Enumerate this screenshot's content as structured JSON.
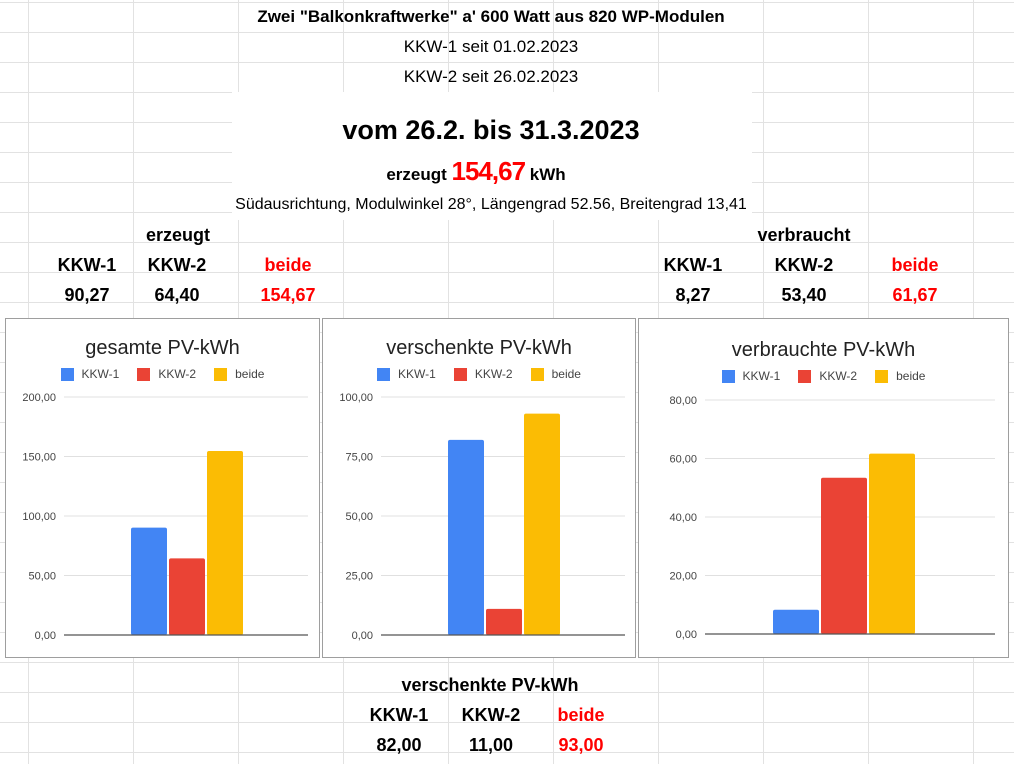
{
  "header": {
    "title": "Zwei \"Balkonkraftwerke\" a' 600 Watt aus 820 WP-Modulen",
    "kkw1_since": "KKW-1 seit 01.02.2023",
    "kkw2_since": "KKW-2 seit 26.02.2023",
    "period": "vom 26.2. bis 31.3.2023",
    "produced_label": "erzeugt",
    "produced_value": "154,67",
    "produced_unit": "kWh",
    "location": "Südausrichtung, Modulwinkel 28°,  Längengrad 52.56,  Breitengrad 13,41"
  },
  "produced_table": {
    "heading": "erzeugt",
    "headers": [
      "KKW-1",
      "KKW-2",
      "beide"
    ],
    "values": [
      "90,27",
      "64,40",
      "154,67"
    ]
  },
  "consumed_table": {
    "heading": "verbraucht",
    "headers": [
      "KKW-1",
      "KKW-2",
      "beide"
    ],
    "values": [
      "8,27",
      "53,40",
      "61,67"
    ]
  },
  "given_table": {
    "heading": "verschenkte PV-kWh",
    "headers": [
      "KKW-1",
      "KKW-2",
      "beide"
    ],
    "values": [
      "82,00",
      "11,00",
      "93,00"
    ]
  },
  "colors": {
    "kkw1": "#4285f4",
    "kkw2": "#ea4335",
    "beide": "#fbbc04",
    "highlight": "#ff0000"
  },
  "chart_data": [
    {
      "type": "bar",
      "title": "gesamte PV-kWh",
      "series": [
        {
          "name": "KKW-1",
          "values": [
            90.27
          ]
        },
        {
          "name": "KKW-2",
          "values": [
            64.4
          ]
        },
        {
          "name": "beide",
          "values": [
            154.67
          ]
        }
      ],
      "yticks": [
        "0,00",
        "50,00",
        "100,00",
        "150,00",
        "200,00"
      ],
      "ylim": [
        0,
        200
      ],
      "legend": "top",
      "grid": true
    },
    {
      "type": "bar",
      "title": "verschenkte PV-kWh",
      "series": [
        {
          "name": "KKW-1",
          "values": [
            82.0
          ]
        },
        {
          "name": "KKW-2",
          "values": [
            11.0
          ]
        },
        {
          "name": "beide",
          "values": [
            93.0
          ]
        }
      ],
      "yticks": [
        "0,00",
        "25,00",
        "50,00",
        "75,00",
        "100,00"
      ],
      "ylim": [
        0,
        100
      ],
      "legend": "top",
      "grid": true
    },
    {
      "type": "bar",
      "title": "verbrauchte PV-kWh",
      "series": [
        {
          "name": "KKW-1",
          "values": [
            8.27
          ]
        },
        {
          "name": "KKW-2",
          "values": [
            53.4
          ]
        },
        {
          "name": "beide",
          "values": [
            61.67
          ]
        }
      ],
      "yticks": [
        "0,00",
        "20,00",
        "40,00",
        "60,00",
        "80,00"
      ],
      "ylim": [
        0,
        80
      ],
      "legend": "top",
      "grid": true
    }
  ]
}
